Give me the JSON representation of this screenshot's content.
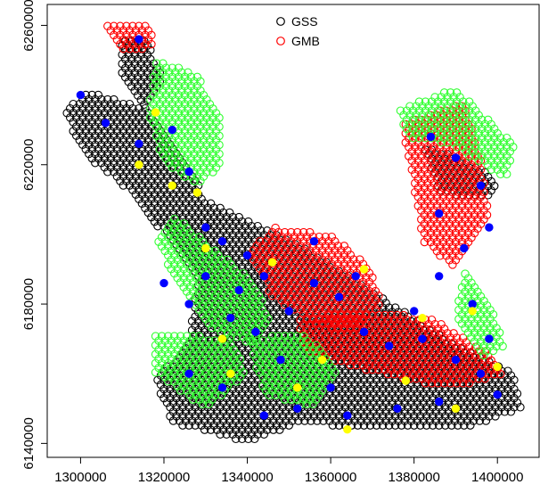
{
  "chart_data": {
    "type": "scatter",
    "title": "",
    "xlabel": "",
    "ylabel": "",
    "xlim": [
      1292000,
      1410000
    ],
    "ylim": [
      6136000,
      6266000
    ],
    "x_ticks": [
      1300000,
      1320000,
      1340000,
      1360000,
      1380000,
      1400000
    ],
    "y_ticks": [
      6140000,
      6180000,
      6220000,
      6260000
    ],
    "x_tick_labels": [
      "1300000",
      "1320000",
      "1340000",
      "1360000",
      "1380000",
      "1400000"
    ],
    "y_tick_labels": [
      "6140000",
      "6180000",
      "6220000",
      "6260000"
    ],
    "grid": false,
    "legend_position": "top-center",
    "legend": [
      {
        "label": "GSS",
        "color": "#000000",
        "marker": "open-circle"
      },
      {
        "label": "GMB",
        "color": "#ff0000",
        "marker": "open-circle"
      }
    ],
    "series": [
      {
        "name": "GSS",
        "color": "#000000",
        "marker": "open-circle",
        "regions": [
          [
            [
              1302000,
              6241000
            ],
            [
              1316000,
              6236000
            ],
            [
              1324000,
              6224000
            ],
            [
              1330000,
              6210000
            ],
            [
              1342000,
              6203000
            ],
            [
              1354000,
              6196000
            ],
            [
              1362000,
              6190000
            ],
            [
              1372000,
              6182000
            ],
            [
              1380000,
              6176000
            ],
            [
              1390000,
              6168000
            ],
            [
              1404000,
              6160000
            ],
            [
              1406000,
              6150000
            ],
            [
              1392000,
              6144000
            ],
            [
              1372000,
              6144000
            ],
            [
              1352000,
              6146000
            ],
            [
              1340000,
              6140000
            ],
            [
              1322000,
              6146000
            ],
            [
              1318000,
              6158000
            ],
            [
              1326000,
              6170000
            ],
            [
              1328000,
              6186000
            ],
            [
              1320000,
              6200000
            ],
            [
              1312000,
              6212000
            ],
            [
              1300000,
              6224000
            ],
            [
              1296000,
              6236000
            ]
          ],
          [
            [
              1310000,
              6256000
            ],
            [
              1316000,
              6256000
            ],
            [
              1320000,
              6244000
            ],
            [
              1316000,
              6236000
            ],
            [
              1310000,
              6244000
            ]
          ],
          [
            [
              1382000,
              6226000
            ],
            [
              1390000,
              6222000
            ],
            [
              1400000,
              6216000
            ],
            [
              1398000,
              6210000
            ],
            [
              1386000,
              6212000
            ]
          ]
        ]
      },
      {
        "name": "GMB",
        "color": "#ff0000",
        "marker": "open-circle",
        "regions": [
          [
            [
              1305000,
              6260000
            ],
            [
              1316000,
              6261000
            ],
            [
              1318000,
              6254000
            ],
            [
              1310000,
              6252000
            ]
          ],
          [
            [
              1346000,
              6202000
            ],
            [
              1360000,
              6200000
            ],
            [
              1370000,
              6190000
            ],
            [
              1372000,
              6180000
            ],
            [
              1366000,
              6172000
            ],
            [
              1356000,
              6174000
            ],
            [
              1346000,
              6182000
            ],
            [
              1340000,
              6194000
            ]
          ],
          [
            [
              1352000,
              6176000
            ],
            [
              1370000,
              6178000
            ],
            [
              1384000,
              6176000
            ],
            [
              1398000,
              6166000
            ],
            [
              1402000,
              6160000
            ],
            [
              1390000,
              6156000
            ],
            [
              1378000,
              6158000
            ],
            [
              1366000,
              6162000
            ],
            [
              1354000,
              6166000
            ]
          ],
          [
            [
              1378000,
              6232000
            ],
            [
              1392000,
              6238000
            ],
            [
              1396000,
              6222000
            ],
            [
              1398000,
              6204000
            ],
            [
              1390000,
              6190000
            ],
            [
              1382000,
              6198000
            ],
            [
              1380000,
              6214000
            ],
            [
              1378000,
              6226000
            ]
          ]
        ]
      },
      {
        "name": "",
        "color": "#33ff33",
        "marker": "open-circle",
        "regions": [
          [
            [
              1318000,
              6250000
            ],
            [
              1328000,
              6246000
            ],
            [
              1334000,
              6232000
            ],
            [
              1334000,
              6220000
            ],
            [
              1328000,
              6214000
            ],
            [
              1320000,
              6220000
            ],
            [
              1316000,
              6236000
            ]
          ],
          [
            [
              1322000,
              6206000
            ],
            [
              1330000,
              6198000
            ],
            [
              1340000,
              6188000
            ],
            [
              1346000,
              6176000
            ],
            [
              1342000,
              6168000
            ],
            [
              1332000,
              6172000
            ],
            [
              1324000,
              6184000
            ],
            [
              1318000,
              6198000
            ]
          ],
          [
            [
              1318000,
              6172000
            ],
            [
              1336000,
              6170000
            ],
            [
              1340000,
              6160000
            ],
            [
              1330000,
              6150000
            ],
            [
              1318000,
              6160000
            ]
          ],
          [
            [
              1340000,
              6170000
            ],
            [
              1354000,
              6172000
            ],
            [
              1362000,
              6160000
            ],
            [
              1356000,
              6150000
            ],
            [
              1344000,
              6154000
            ]
          ],
          [
            [
              1376000,
              6236000
            ],
            [
              1390000,
              6242000
            ],
            [
              1404000,
              6226000
            ],
            [
              1402000,
              6216000
            ],
            [
              1388000,
              6226000
            ],
            [
              1378000,
              6228000
            ]
          ],
          [
            [
              1392000,
              6190000
            ],
            [
              1398000,
              6180000
            ],
            [
              1402000,
              6168000
            ],
            [
              1396000,
              6164000
            ],
            [
              1390000,
              6176000
            ]
          ]
        ]
      },
      {
        "name": "",
        "color": "#0000ff",
        "marker": "filled-circle",
        "points": [
          [
            1300000,
            6240000
          ],
          [
            1306000,
            6232000
          ],
          [
            1314000,
            6226000
          ],
          [
            1322000,
            6230000
          ],
          [
            1326000,
            6218000
          ],
          [
            1330000,
            6202000
          ],
          [
            1334000,
            6198000
          ],
          [
            1340000,
            6194000
          ],
          [
            1344000,
            6188000
          ],
          [
            1338000,
            6184000
          ],
          [
            1330000,
            6188000
          ],
          [
            1326000,
            6180000
          ],
          [
            1320000,
            6186000
          ],
          [
            1336000,
            6176000
          ],
          [
            1342000,
            6172000
          ],
          [
            1350000,
            6178000
          ],
          [
            1356000,
            6186000
          ],
          [
            1362000,
            6182000
          ],
          [
            1368000,
            6172000
          ],
          [
            1374000,
            6168000
          ],
          [
            1382000,
            6170000
          ],
          [
            1390000,
            6164000
          ],
          [
            1396000,
            6160000
          ],
          [
            1400000,
            6154000
          ],
          [
            1386000,
            6152000
          ],
          [
            1376000,
            6150000
          ],
          [
            1364000,
            6148000
          ],
          [
            1352000,
            6150000
          ],
          [
            1344000,
            6148000
          ],
          [
            1334000,
            6156000
          ],
          [
            1326000,
            6160000
          ],
          [
            1384000,
            6228000
          ],
          [
            1390000,
            6222000
          ],
          [
            1396000,
            6214000
          ],
          [
            1398000,
            6202000
          ],
          [
            1386000,
            6206000
          ],
          [
            1392000,
            6196000
          ],
          [
            1386000,
            6188000
          ],
          [
            1394000,
            6180000
          ],
          [
            1398000,
            6170000
          ],
          [
            1314000,
            6256000
          ],
          [
            1356000,
            6198000
          ],
          [
            1366000,
            6188000
          ],
          [
            1380000,
            6178000
          ],
          [
            1360000,
            6156000
          ],
          [
            1348000,
            6164000
          ]
        ]
      },
      {
        "name": "",
        "color": "#ffff00",
        "marker": "filled-circle",
        "points": [
          [
            1318000,
            6235000
          ],
          [
            1322000,
            6214000
          ],
          [
            1314000,
            6220000
          ],
          [
            1328000,
            6212000
          ],
          [
            1330000,
            6196000
          ],
          [
            1346000,
            6192000
          ],
          [
            1368000,
            6190000
          ],
          [
            1382000,
            6176000
          ],
          [
            1394000,
            6178000
          ],
          [
            1336000,
            6160000
          ],
          [
            1358000,
            6164000
          ],
          [
            1378000,
            6158000
          ],
          [
            1390000,
            6150000
          ],
          [
            1400000,
            6162000
          ],
          [
            1334000,
            6170000
          ],
          [
            1352000,
            6156000
          ],
          [
            1364000,
            6144000
          ]
        ]
      }
    ]
  }
}
